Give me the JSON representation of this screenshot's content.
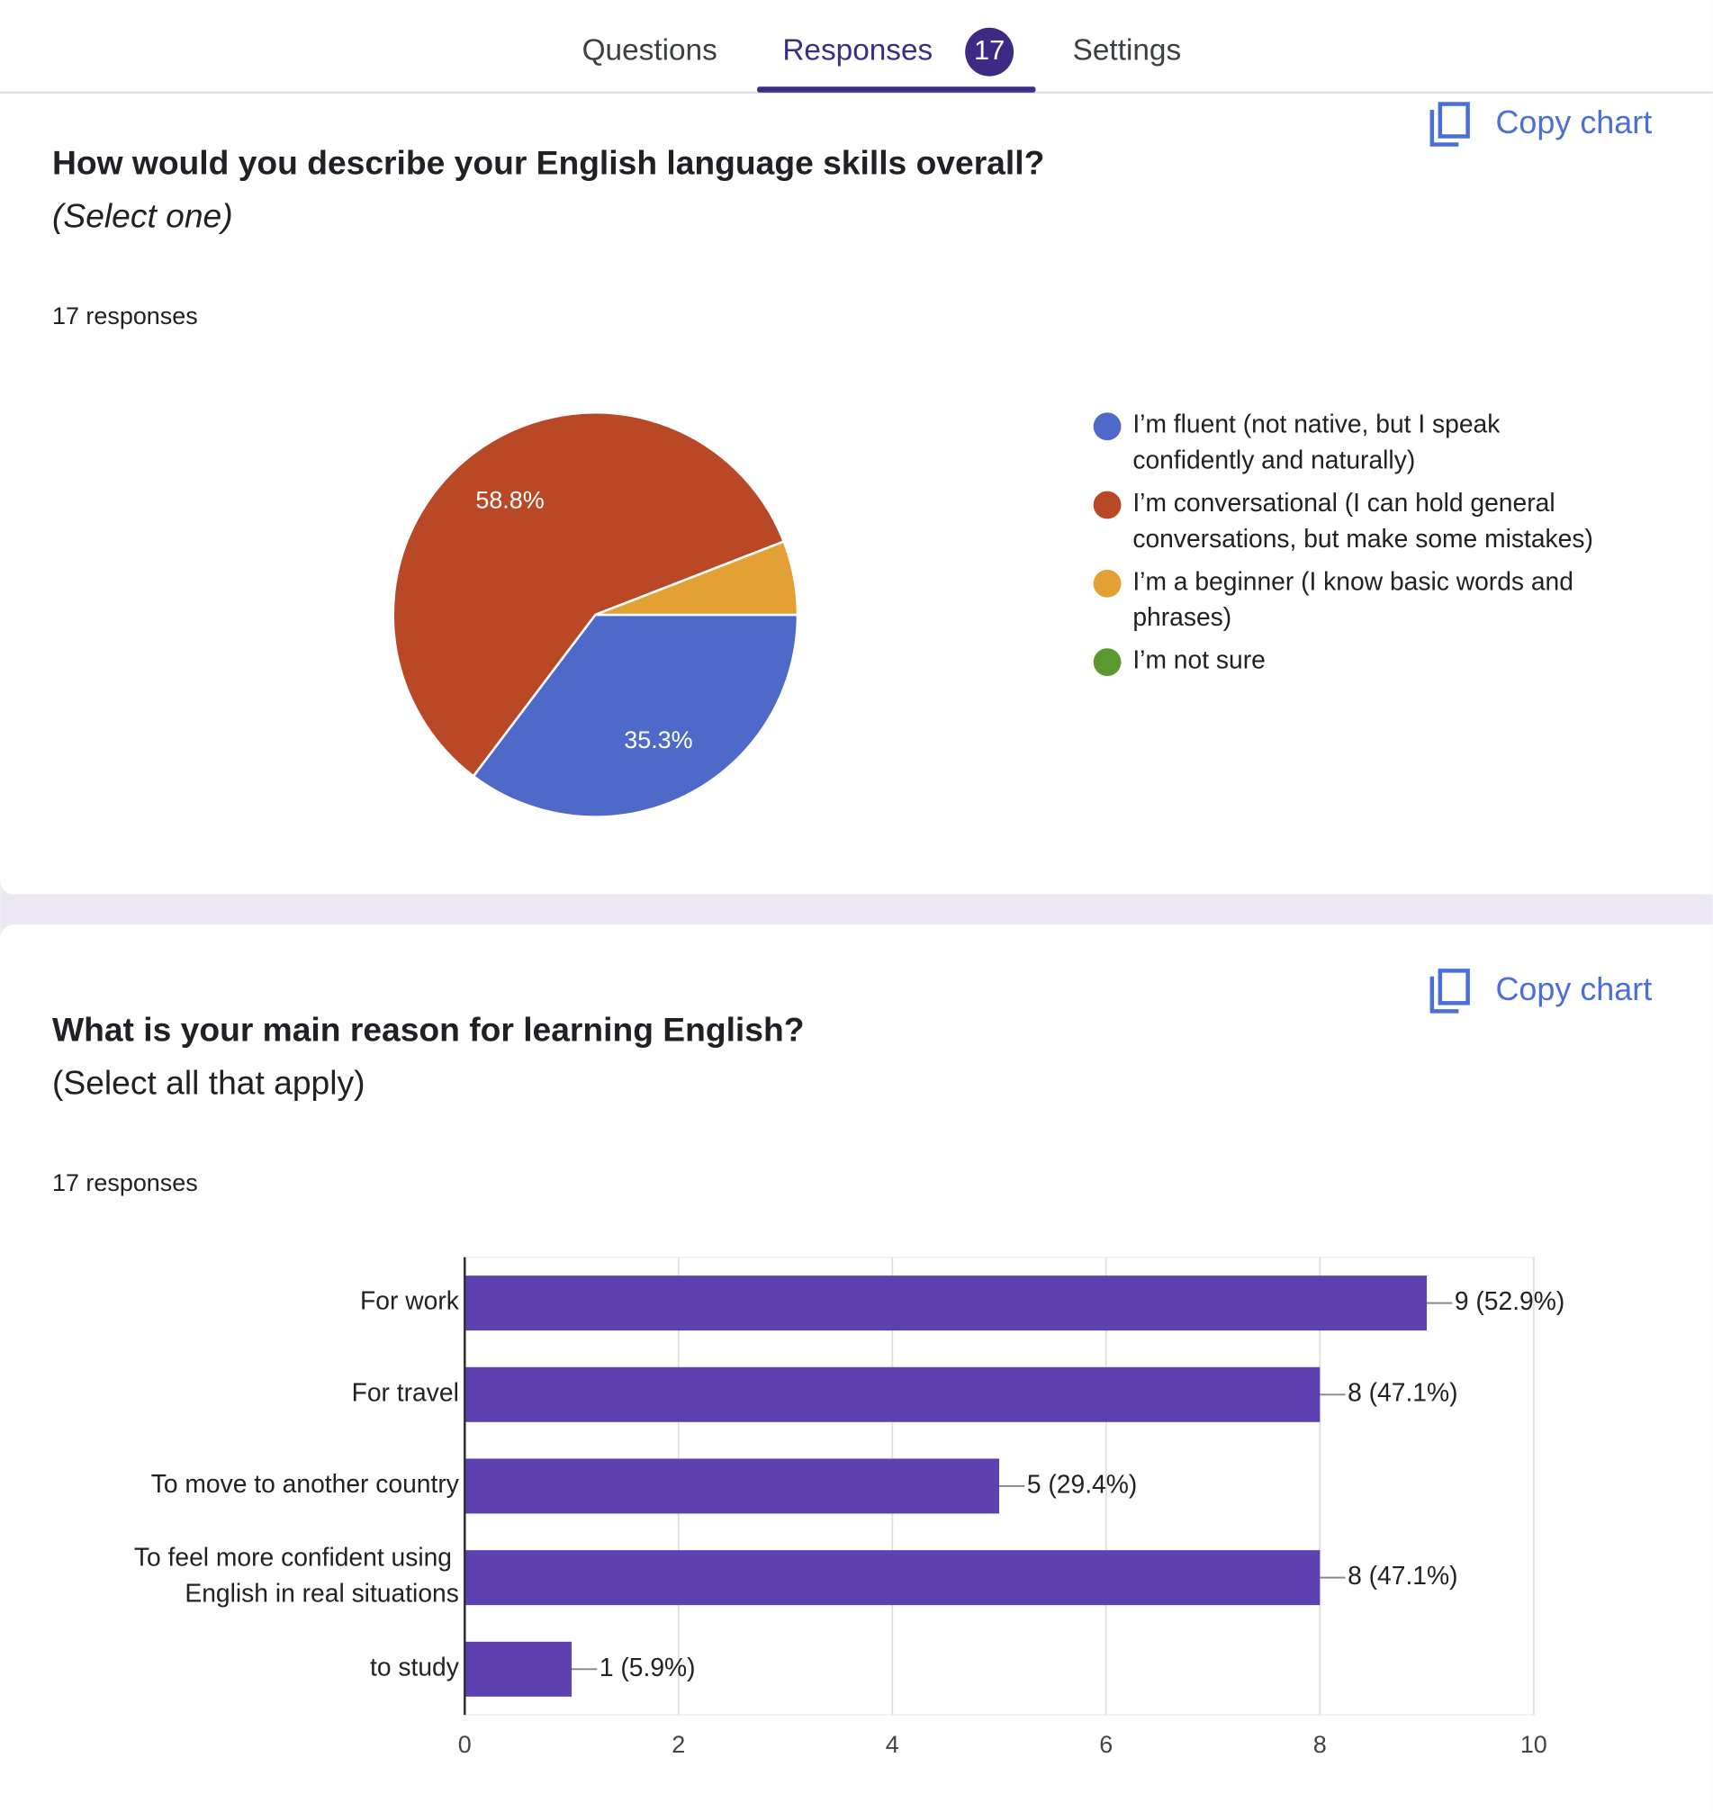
{
  "tabs": [
    "Questions",
    "Responses",
    "Settings"
  ],
  "active_tab": 1,
  "response_count": 17,
  "chart_data": [
    {
      "type": "pie",
      "title": "How would you describe your English language skills overall?",
      "subtitle": "(Select one)",
      "responses_text": "17 responses",
      "copy_label": "Copy chart",
      "categories": [
        "I’m fluent (not native, but I speak confidently and naturally)",
        "I’m conversational (I can hold general conversations, but make some mistakes)",
        "I’m a beginner (I know basic words and phrases)",
        "I’m not sure"
      ],
      "values": [
        35.3,
        58.8,
        5.9,
        0
      ],
      "value_labels": [
        "35.3%",
        "58.8%",
        null,
        null
      ],
      "colors": [
        "#4e69c8",
        "#b94826",
        "#e2a035",
        "#5a9932"
      ]
    },
    {
      "type": "bar",
      "orientation": "horizontal",
      "title": "What is your main reason for learning English?",
      "subtitle": "(Select all that apply)",
      "responses_text": "17 responses",
      "copy_label": "Copy chart",
      "categories": [
        "For work",
        "For travel",
        "To move to another country",
        "To feel more confident using English in real situations",
        "to study"
      ],
      "values": [
        9,
        8,
        5,
        8,
        1
      ],
      "value_labels": [
        "9 (52.9%)",
        "8 (47.1%)",
        "5 (29.4%)",
        "8 (47.1%)",
        "1 (5.9%)"
      ],
      "color": "#5e41b1",
      "xlim": [
        0,
        10
      ],
      "xticks": [
        0,
        2,
        4,
        6,
        8,
        10
      ],
      "grid": true
    }
  ]
}
